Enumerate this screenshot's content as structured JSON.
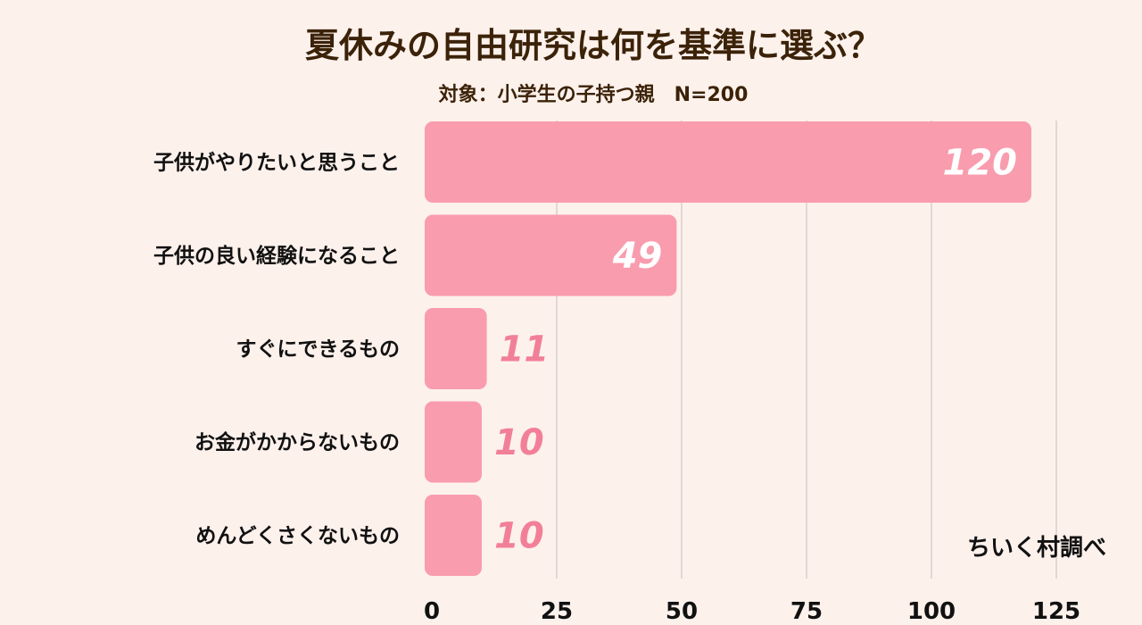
{
  "chart_data": {
    "type": "bar",
    "orientation": "horizontal",
    "title": "夏休みの自由研究は何を基準に選ぶ？",
    "subtitle": "対象：小学生の子持つ親　N=200",
    "categories": [
      "子供がやりたいと思うこと",
      "子供の良い経験になること",
      "すぐにできるもの",
      "お金がかからないもの",
      "めんどくさくないもの"
    ],
    "values": [
      120,
      49,
      11,
      10,
      10
    ],
    "xlim": [
      0,
      125
    ],
    "xticks": [
      0,
      25,
      50,
      75,
      100,
      125
    ],
    "grid": true,
    "bar_color": "#f99cae",
    "label_color_inside": "#ffffff",
    "label_color_outside": "#f27f98"
  },
  "credit": "ちいく村調べ"
}
